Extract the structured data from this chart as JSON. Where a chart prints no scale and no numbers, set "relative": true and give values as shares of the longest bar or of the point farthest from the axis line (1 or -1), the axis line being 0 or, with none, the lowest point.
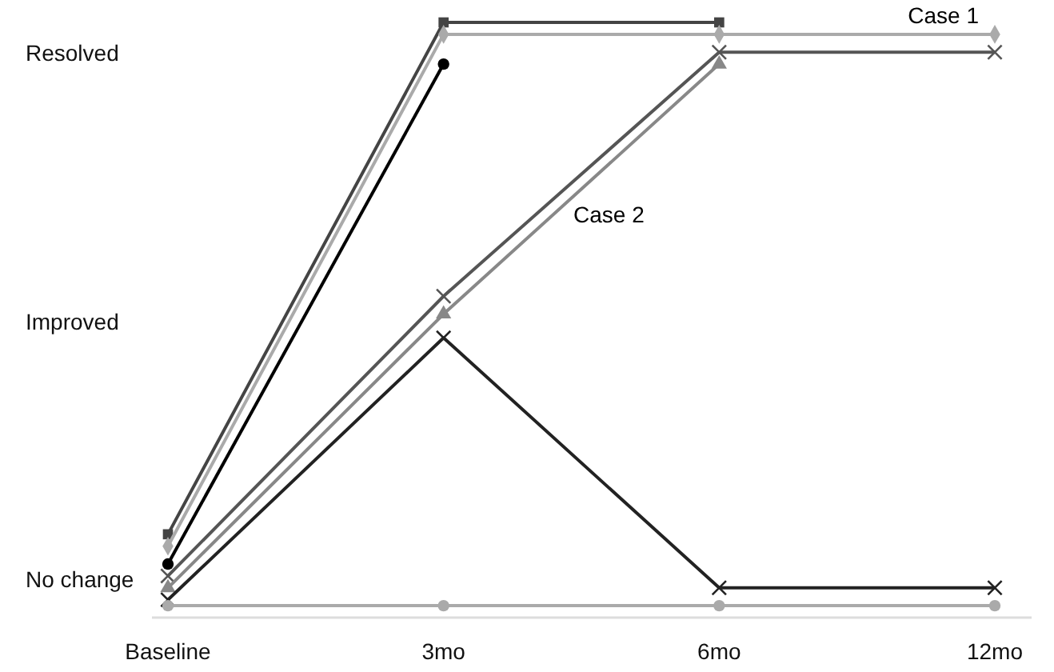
{
  "chart_data": {
    "type": "line",
    "categories": [
      "Baseline",
      "3mo",
      "6mo",
      "12mo"
    ],
    "relative": true,
    "annotations": [
      "Resolved",
      "Improved",
      "No change"
    ],
    "legend": false,
    "series": [
      {
        "color": "#444444",
        "marker": "square",
        "values": [
          0.14,
          1.0,
          1.0,
          null
        ]
      },
      {
        "name": "Case 1",
        "color": "#aaaaaa",
        "marker": "diamond",
        "values": [
          0.12,
          0.98,
          0.98,
          0.98
        ]
      },
      {
        "color": "#000000",
        "marker": "circle",
        "values": [
          0.09,
          0.93,
          null,
          null
        ]
      },
      {
        "name": "Case 2",
        "color": "#555555",
        "marker": "cross",
        "values": [
          0.07,
          0.54,
          0.95,
          0.95
        ]
      },
      {
        "color": "#888888",
        "marker": "triangle",
        "values": [
          0.05,
          0.51,
          0.93,
          null
        ]
      },
      {
        "color": "#222222",
        "marker": "cross",
        "values": [
          0.03,
          0.47,
          0.05,
          0.05
        ]
      },
      {
        "color": "#aaaaaa",
        "marker": "circle",
        "values": [
          0.02,
          0.02,
          0.02,
          0.02
        ]
      }
    ]
  }
}
